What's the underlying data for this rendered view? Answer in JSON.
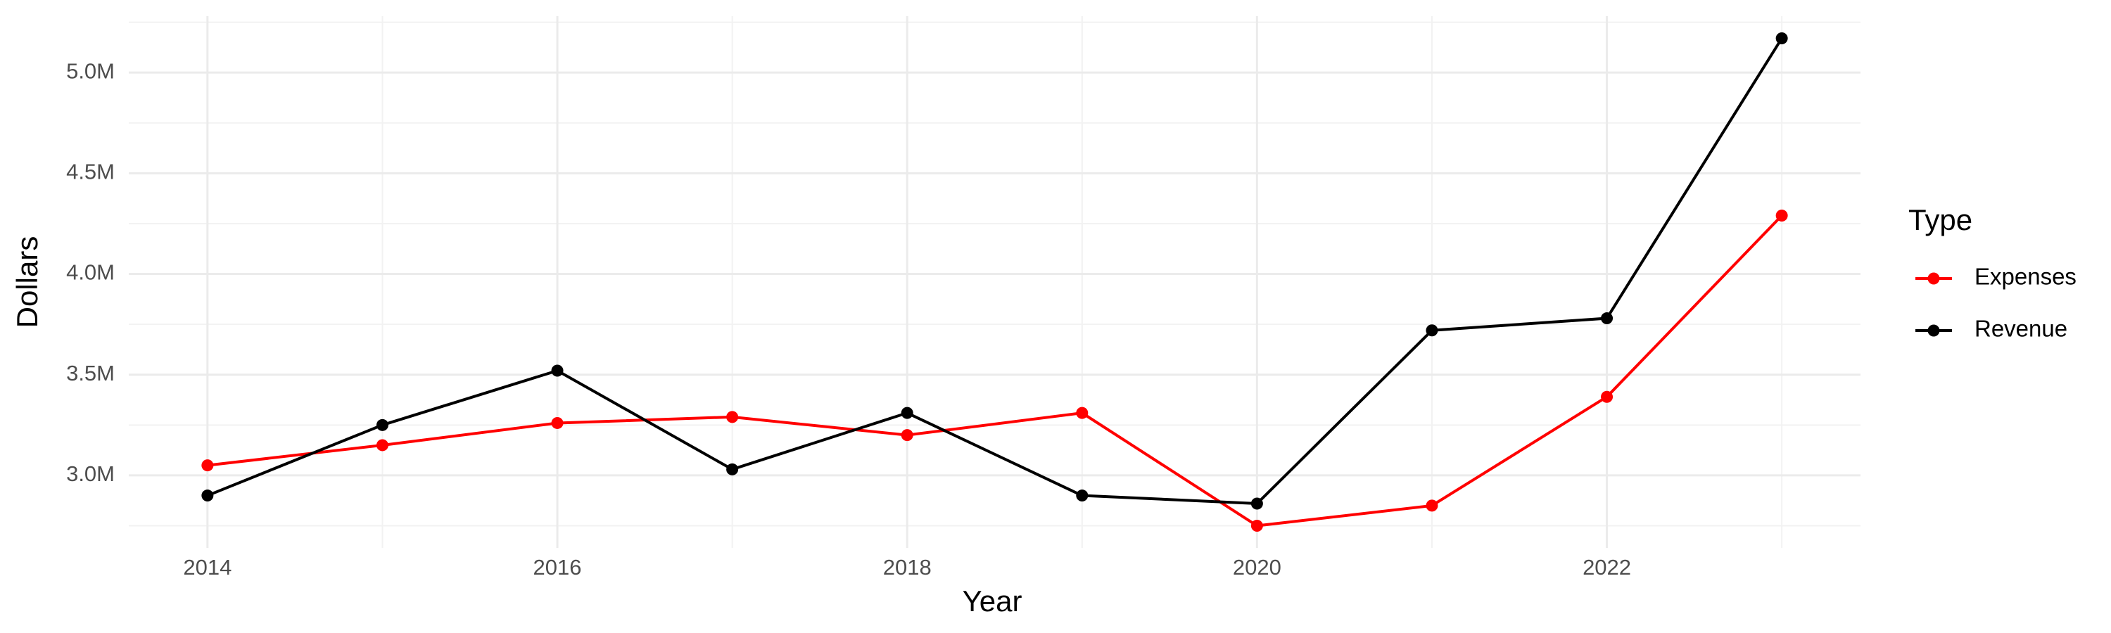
{
  "chart_data": {
    "type": "line",
    "x_label": "Year",
    "y_label": "Dollars",
    "legend_title": "Type",
    "x": [
      2014,
      2015,
      2016,
      2017,
      2018,
      2019,
      2020,
      2021,
      2022,
      2023
    ],
    "series": [
      {
        "name": "Expenses",
        "color": "#ff0000",
        "values": [
          3050000,
          3150000,
          3260000,
          3290000,
          3200000,
          3310000,
          2750000,
          2850000,
          3390000,
          4290000
        ]
      },
      {
        "name": "Revenue",
        "color": "#000000",
        "values": [
          2900000,
          3250000,
          3520000,
          3030000,
          3310000,
          2900000,
          2860000,
          3720000,
          3780000,
          5170000
        ]
      }
    ],
    "xlim": [
      2013.55,
      2023.45
    ],
    "xticks": [
      2014,
      2016,
      2018,
      2020,
      2022
    ],
    "ylim": [
      2640000,
      5280000
    ],
    "yticks": [
      {
        "value": 3000000,
        "label": "3.0M"
      },
      {
        "value": 3500000,
        "label": "3.5M"
      },
      {
        "value": 4000000,
        "label": "4.0M"
      },
      {
        "value": 4500000,
        "label": "4.5M"
      },
      {
        "value": 5000000,
        "label": "5.0M"
      }
    ],
    "grid": true,
    "legend": "right"
  }
}
